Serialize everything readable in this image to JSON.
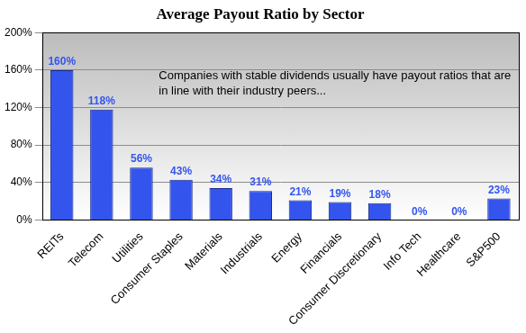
{
  "chart_data": {
    "type": "bar",
    "title": "Average Payout Ratio by Sector",
    "annotation": "Companies with stable dividends usually have payout ratios that are in line with their industry peers...",
    "categories": [
      "REITs",
      "Telecom",
      "Utilities",
      "Consumer Staples",
      "Materials",
      "Industrials",
      "Energy",
      "Financials",
      "Consumer Discretionary",
      "Info Tech",
      "Healthcare",
      "S&P500"
    ],
    "values": [
      160,
      118,
      56,
      43,
      34,
      31,
      21,
      19,
      18,
      0,
      0,
      23
    ],
    "value_labels": [
      "160%",
      "118%",
      "56%",
      "43%",
      "34%",
      "31%",
      "21%",
      "19%",
      "18%",
      "0%",
      "0%",
      "23%"
    ],
    "data_labels": true,
    "color": "#3355ee",
    "ylim": [
      0,
      200
    ],
    "yticks": [
      {
        "value": 0,
        "label": "0%"
      },
      {
        "value": 40,
        "label": "40%"
      },
      {
        "value": 80,
        "label": "80%"
      },
      {
        "value": 120,
        "label": "120%"
      },
      {
        "value": 160,
        "label": "160%"
      },
      {
        "value": 200,
        "label": "200%"
      }
    ],
    "grid": true
  }
}
